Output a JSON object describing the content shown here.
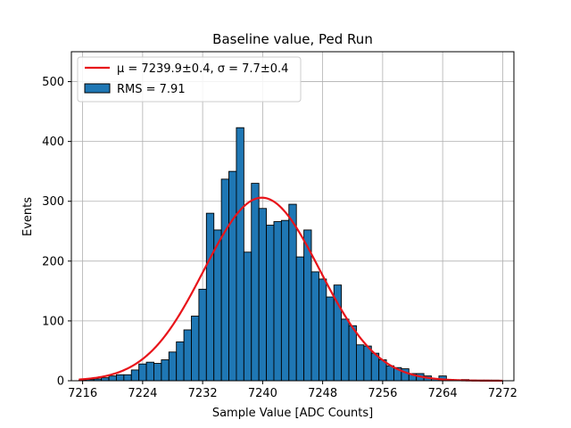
{
  "chart_data": {
    "type": "histogram",
    "title": "Baseline value, Ped Run",
    "xlabel": "Sample Value [ADC Counts]",
    "ylabel": "Events",
    "xlim": [
      7214.5,
      7273.5
    ],
    "ylim": [
      0,
      550
    ],
    "xticks": [
      7216,
      7224,
      7232,
      7240,
      7248,
      7256,
      7264,
      7272
    ],
    "yticks": [
      0,
      100,
      200,
      300,
      400,
      500
    ],
    "grid": true,
    "bin_width": 1,
    "bin_centers": [
      7216,
      7217,
      7218,
      7219,
      7220,
      7221,
      7222,
      7223,
      7224,
      7225,
      7226,
      7227,
      7228,
      7229,
      7230,
      7231,
      7232,
      7233,
      7234,
      7235,
      7236,
      7237,
      7238,
      7239,
      7240,
      7241,
      7242,
      7243,
      7244,
      7245,
      7246,
      7247,
      7248,
      7249,
      7250,
      7251,
      7252,
      7253,
      7254,
      7255,
      7256,
      7257,
      7258,
      7259,
      7260,
      7261,
      7262,
      7263,
      7264,
      7265,
      7266,
      7267,
      7268,
      7269,
      7270,
      7271,
      7272
    ],
    "counts": [
      1,
      2,
      3,
      5,
      8,
      10,
      10,
      18,
      28,
      31,
      29,
      35,
      48,
      65,
      85,
      108,
      153,
      280,
      252,
      337,
      350,
      423,
      215,
      330,
      288,
      260,
      266,
      268,
      295,
      207,
      252,
      182,
      170,
      140,
      160,
      103,
      92,
      60,
      58,
      46,
      35,
      25,
      22,
      20,
      12,
      12,
      8,
      3,
      8,
      2,
      1,
      2,
      1,
      1,
      1,
      1,
      0
    ],
    "fit": {
      "type": "gaussian",
      "mu": 7239.9,
      "sigma": 7.7,
      "amplitude": 306,
      "x_range": [
        7215.5,
        7272
      ]
    },
    "legend": {
      "position": "top-left",
      "entries": [
        {
          "label": "μ = 7239.9±0.4, σ = 7.7±0.4",
          "type": "line",
          "color": "#e8141a"
        },
        {
          "label": "RMS = 7.91",
          "type": "patch",
          "color": "#1f77b4"
        }
      ]
    },
    "colors": {
      "bar": "#1f77b4",
      "bar_edge": "#000000",
      "fit": "#e8141a"
    }
  }
}
